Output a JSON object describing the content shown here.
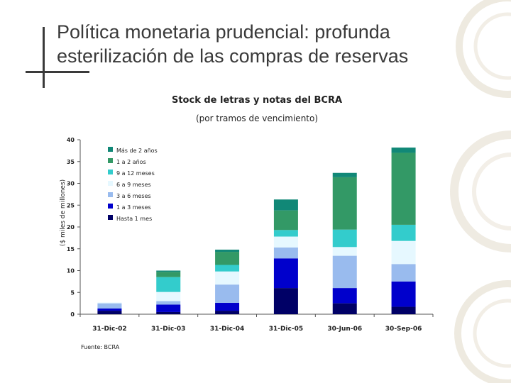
{
  "slide": {
    "title": "Política monetaria prudencial: profunda esterilización de las compras de reservas",
    "source": "Fuente: BCRA"
  },
  "colors": {
    "text": "#3a3a3a",
    "axis": "#555555"
  },
  "chart_data": {
    "type": "bar",
    "stacked": true,
    "title": "Stock de letras y notas del BCRA",
    "subtitle": "(por tramos de vencimiento)",
    "ylabel": "($ miles de millones)",
    "xlabel": "",
    "ylim": [
      0,
      40
    ],
    "yticks": [
      0,
      5,
      10,
      15,
      20,
      25,
      30,
      35,
      40
    ],
    "categories": [
      "31-Dic-02",
      "31-Dic-03",
      "31-Dic-04",
      "31-Dic-05",
      "30-Jun-06",
      "30-Sep-06"
    ],
    "legend_position": "top-left",
    "series": [
      {
        "name": "Hasta 1 mes",
        "color": "#000066",
        "values": [
          0.8,
          0.5,
          0.8,
          6.0,
          2.5,
          1.7
        ]
      },
      {
        "name": "1 a 3 meses",
        "color": "#0000cc",
        "values": [
          0.5,
          1.7,
          1.8,
          6.8,
          3.5,
          5.8
        ]
      },
      {
        "name": "3 a 6 meses",
        "color": "#99bbee",
        "values": [
          1.2,
          0.8,
          4.2,
          2.5,
          7.4,
          4.0
        ]
      },
      {
        "name": "6 a 9 meses",
        "color": "#e6f8ff",
        "values": [
          0.2,
          2.1,
          3.0,
          2.5,
          2.0,
          5.3
        ]
      },
      {
        "name": "9 a 12 meses",
        "color": "#33cccc",
        "values": [
          0.0,
          3.4,
          1.5,
          1.5,
          4.0,
          3.7
        ]
      },
      {
        "name": "1 a 2 años",
        "color": "#339966",
        "values": [
          0.0,
          1.2,
          3.0,
          4.5,
          12.0,
          16.5
        ]
      },
      {
        "name": "Más de 2 años",
        "color": "#118877",
        "values": [
          0.0,
          0.3,
          0.5,
          2.5,
          1.0,
          1.2
        ]
      }
    ]
  }
}
